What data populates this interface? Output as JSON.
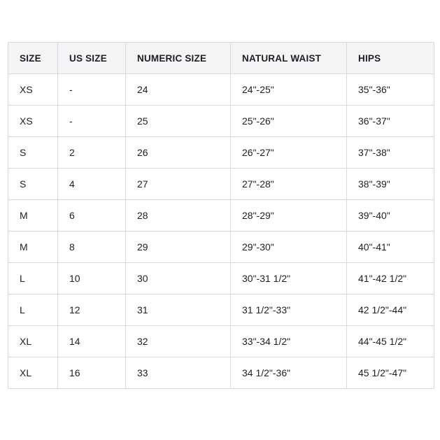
{
  "table": {
    "headers": [
      "SIZE",
      "US SIZE",
      "NUMERIC SIZE",
      "NATURAL WAIST",
      "HIPS"
    ],
    "rows": [
      [
        "XS",
        "-",
        "24",
        "24\"-25\"",
        "35\"-36\""
      ],
      [
        "XS",
        "-",
        "25",
        "25\"-26\"",
        "36\"-37\""
      ],
      [
        "S",
        "2",
        "26",
        "26\"-27\"",
        "37\"-38\""
      ],
      [
        "S",
        "4",
        "27",
        "27\"-28\"",
        "38\"-39\""
      ],
      [
        "M",
        "6",
        "28",
        "28\"-29\"",
        "39\"-40\""
      ],
      [
        "M",
        "8",
        "29",
        "29\"-30\"",
        "40\"-41\""
      ],
      [
        "L",
        "10",
        "30",
        "30\"-31 1/2\"",
        "41\"-42 1/2\""
      ],
      [
        "L",
        "12",
        "31",
        "31 1/2\"-33\"",
        "42 1/2\"-44\""
      ],
      [
        "XL",
        "14",
        "32",
        "33\"-34 1/2\"",
        "44\"-45 1/2\""
      ],
      [
        "XL",
        "16",
        "33",
        "34 1/2\"-36\"",
        "45 1/2\"-47\""
      ]
    ]
  }
}
